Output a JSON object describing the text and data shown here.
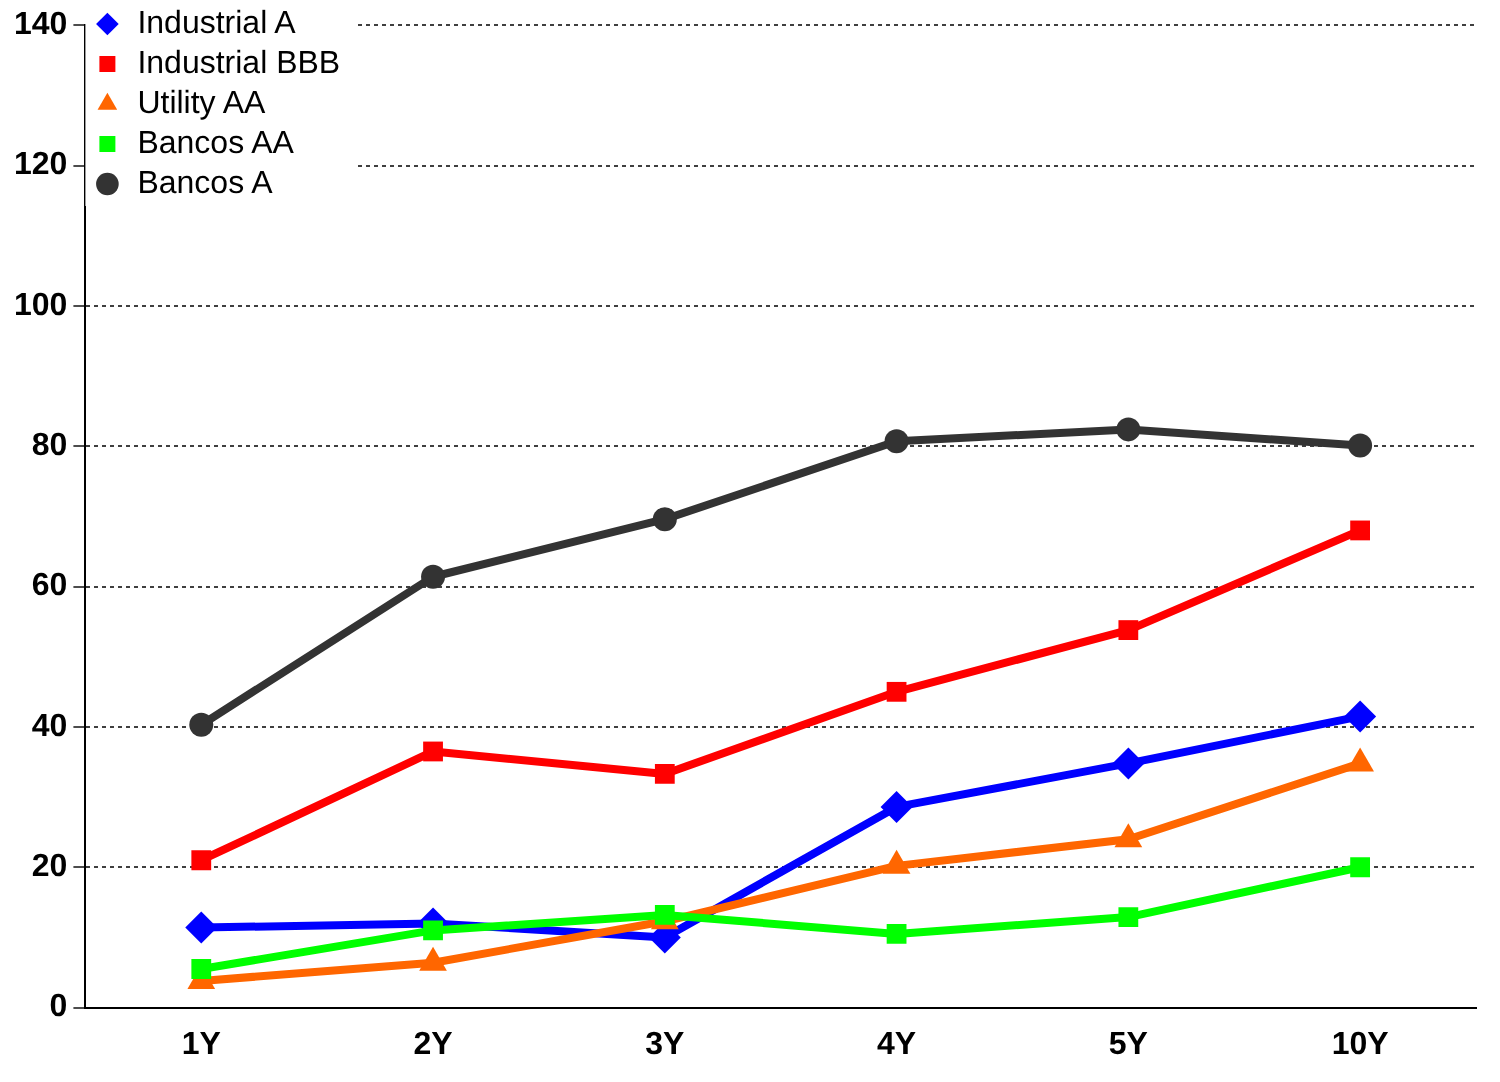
{
  "chart_data": {
    "type": "line",
    "categories": [
      "1Y",
      "2Y",
      "3Y",
      "4Y",
      "5Y",
      "10Y"
    ],
    "series": [
      {
        "name": "Industrial A",
        "color": "#0000ff",
        "marker": "diamond",
        "values": [
          11.4,
          12,
          10,
          28.6,
          34.8,
          41.5
        ]
      },
      {
        "name": "Industrial BBB",
        "color": "#ff0000",
        "marker": "square",
        "values": [
          21,
          36.5,
          33.3,
          45,
          53.8,
          68
        ]
      },
      {
        "name": "Utility AA",
        "color": "#ff6600",
        "marker": "triangle",
        "values": [
          3.8,
          6.4,
          12.3,
          20.2,
          24,
          34.8
        ]
      },
      {
        "name": "Bancos AA",
        "color": "#00ff00",
        "marker": "square",
        "values": [
          5.5,
          11,
          13.2,
          10.5,
          12.9,
          20
        ]
      },
      {
        "name": "Bancos A",
        "color": "#333333",
        "marker": "circle",
        "values": [
          40.3,
          61.4,
          69.6,
          80.7,
          82.4,
          80.1
        ]
      }
    ],
    "ylim": [
      0,
      140
    ],
    "yticks": [
      0,
      20,
      40,
      60,
      80,
      100,
      120,
      140
    ],
    "grid": "y",
    "legend": "top left"
  }
}
